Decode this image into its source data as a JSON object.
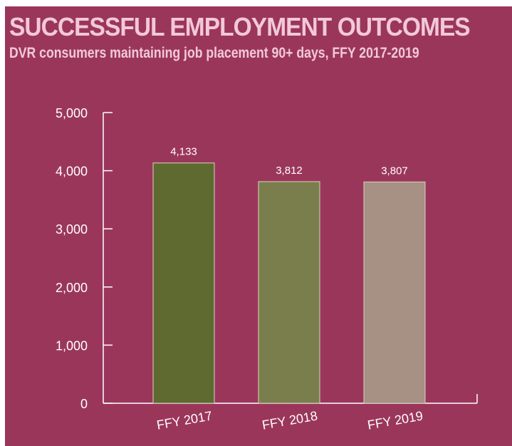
{
  "header": {
    "title": "SUCCESSFUL EMPLOYMENT OUTCOMES",
    "subtitle": "DVR consumers maintaining job placement 90+ days, FFY 2017-2019"
  },
  "colors": {
    "background": "#9b365b",
    "title_text": "#f2c9d6",
    "axis": "#ffffff"
  },
  "chart_data": {
    "type": "bar",
    "title": "SUCCESSFUL EMPLOYMENT OUTCOMES",
    "subtitle": "DVR consumers maintaining job placement 90+ days, FFY 2017-2019",
    "categories": [
      "FFY 2017",
      "FFY 2018",
      "FFY 2019"
    ],
    "values": [
      4133,
      3812,
      3807
    ],
    "value_labels": [
      "4,133",
      "3,812",
      "3,807"
    ],
    "bar_colors": [
      "#5e6a30",
      "#7a7e4c",
      "#a69184"
    ],
    "xlabel": "",
    "ylabel": "",
    "ylim": [
      0,
      5000
    ],
    "yticks": [
      0,
      1000,
      2000,
      3000,
      4000,
      5000
    ],
    "ytick_labels": [
      "0",
      "1,000",
      "2,000",
      "3,000",
      "4,000",
      "5,000"
    ],
    "grid": false,
    "legend": "none"
  }
}
